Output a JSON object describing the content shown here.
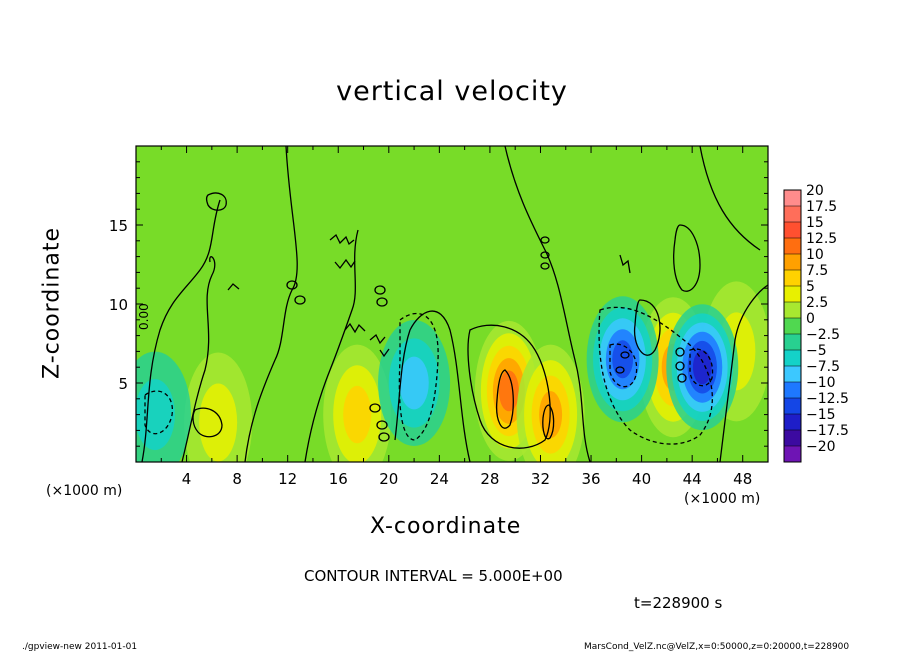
{
  "chart_data": {
    "type": "contour",
    "title": "vertical velocity",
    "xlabel": "X-coordinate",
    "ylabel": "Z-coordinate",
    "x_unit_label": "(×1000 m)",
    "xlim": [
      0,
      50
    ],
    "ylim": [
      0,
      20
    ],
    "x_ticks": [
      4,
      8,
      12,
      16,
      20,
      24,
      28,
      32,
      36,
      40,
      44,
      48
    ],
    "y_ticks": [
      5,
      10,
      15
    ],
    "contour_interval_text": "CONTOUR INTERVAL = 5.000E+00",
    "contour_label": "0.00",
    "time_text": "t=228900 s",
    "colorbar": {
      "levels": [
        "20",
        "17.5",
        "15",
        "12.5",
        "10",
        "7.5",
        "5",
        "2.5",
        "0",
        "−2.5",
        "−5",
        "−7.5",
        "−10",
        "−12.5",
        "−15",
        "−17.5",
        "−20"
      ],
      "colors": [
        "#ff8c8c",
        "#ff6e5a",
        "#ff5030",
        "#ff6e10",
        "#ffa000",
        "#ffd200",
        "#e8f000",
        "#a8e830",
        "#50d850",
        "#28d090",
        "#14d2c8",
        "#3cc8ff",
        "#1e78ff",
        "#1446e6",
        "#1e1ec8",
        "#3c0aa0",
        "#6e14b4"
      ]
    },
    "features": [
      {
        "type": "updraft",
        "x": 29.5,
        "z": 4.5,
        "peak": 12.5
      },
      {
        "type": "updraft",
        "x": 32.8,
        "z": 3.0,
        "peak": 10
      },
      {
        "type": "updraft",
        "x": 17.5,
        "z": 3.0,
        "peak": 7.5
      },
      {
        "type": "updraft",
        "x": 42.5,
        "z": 6.0,
        "peak": 10
      },
      {
        "type": "updraft",
        "x": 6.5,
        "z": 2.5,
        "peak": 5
      },
      {
        "type": "updraft",
        "x": 47.5,
        "z": 7.0,
        "peak": 5
      },
      {
        "type": "downdraft",
        "x": 38.5,
        "z": 6.5,
        "peak": -12.5
      },
      {
        "type": "downdraft",
        "x": 44.8,
        "z": 6.0,
        "peak": -15
      },
      {
        "type": "downdraft",
        "x": 22.0,
        "z": 5.0,
        "peak": -7.5
      },
      {
        "type": "downdraft",
        "x": 1.5,
        "z": 3.0,
        "peak": -5
      }
    ]
  },
  "footer": {
    "left": "./gpview-new 2011-01-01",
    "right": "MarsCond_VelZ.nc@VelZ,x=0:50000,z=0:20000,t=228900"
  },
  "colors": {
    "background_field": "#78dc28",
    "text": "#000000"
  }
}
